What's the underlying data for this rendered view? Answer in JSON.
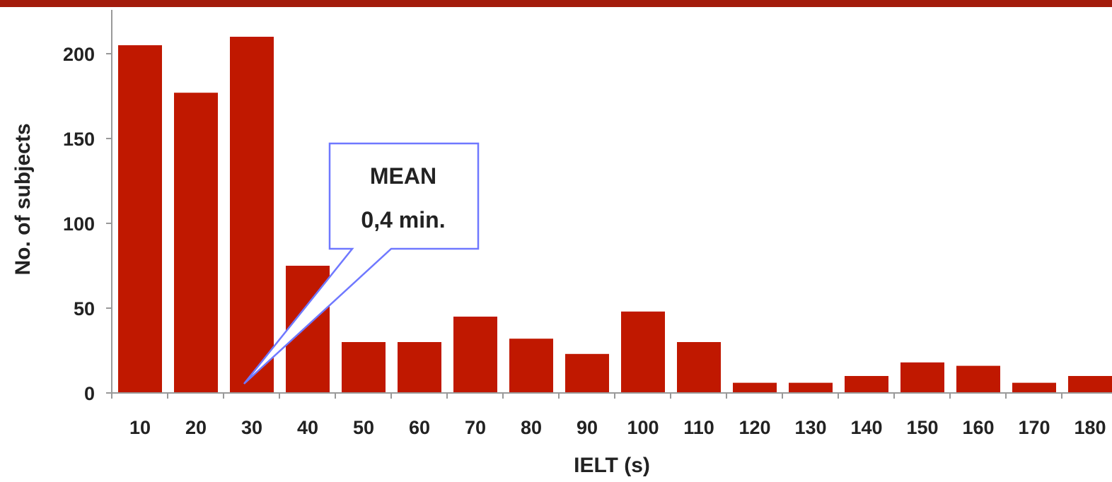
{
  "chart_data": {
    "type": "bar",
    "title": "",
    "xlabel": "IELT (s)",
    "ylabel": "No. of subjects",
    "categories": [
      "10",
      "20",
      "30",
      "40",
      "50",
      "60",
      "70",
      "80",
      "90",
      "100",
      "110",
      "120",
      "130",
      "140",
      "150",
      "160",
      "170",
      "180"
    ],
    "values": [
      205,
      177,
      210,
      75,
      30,
      30,
      45,
      32,
      23,
      48,
      30,
      6,
      6,
      10,
      18,
      16,
      6,
      10
    ],
    "ylim": [
      0,
      225
    ],
    "yticks": [
      0,
      50,
      100,
      150,
      200
    ],
    "grid": false,
    "annotation": {
      "lines": [
        "MEAN",
        "0,4 min."
      ],
      "points_to_category": "30"
    },
    "colors": {
      "bar": "#c01800",
      "frame": "#a31c0c",
      "callout_border": "#6f78ff"
    }
  }
}
